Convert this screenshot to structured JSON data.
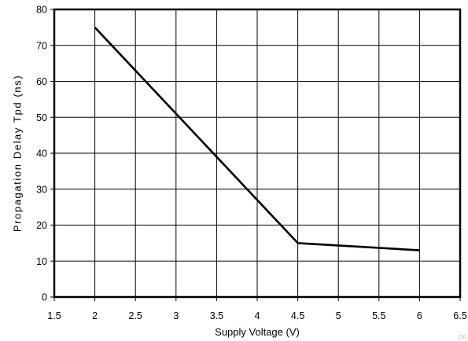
{
  "chart_data": {
    "type": "line",
    "title": "",
    "xlabel": "Supply Voltage (V)",
    "ylabel": "Propagation Delay Tpd (ns)",
    "xlim": [
      1.5,
      6.5
    ],
    "ylim": [
      0,
      80
    ],
    "xticks": [
      "1.5",
      "2",
      "2.5",
      "3",
      "3.5",
      "4",
      "4.5",
      "5",
      "5.5",
      "6",
      "6.5"
    ],
    "yticks": [
      "0",
      "10",
      "20",
      "30",
      "40",
      "50",
      "60",
      "70",
      "80"
    ],
    "grid": true,
    "legend": "none",
    "series": [
      {
        "x": [
          2,
          4.5,
          6
        ],
        "y": [
          75,
          15,
          13
        ],
        "color": "#000000"
      }
    ],
    "corner_mark": "D0"
  }
}
